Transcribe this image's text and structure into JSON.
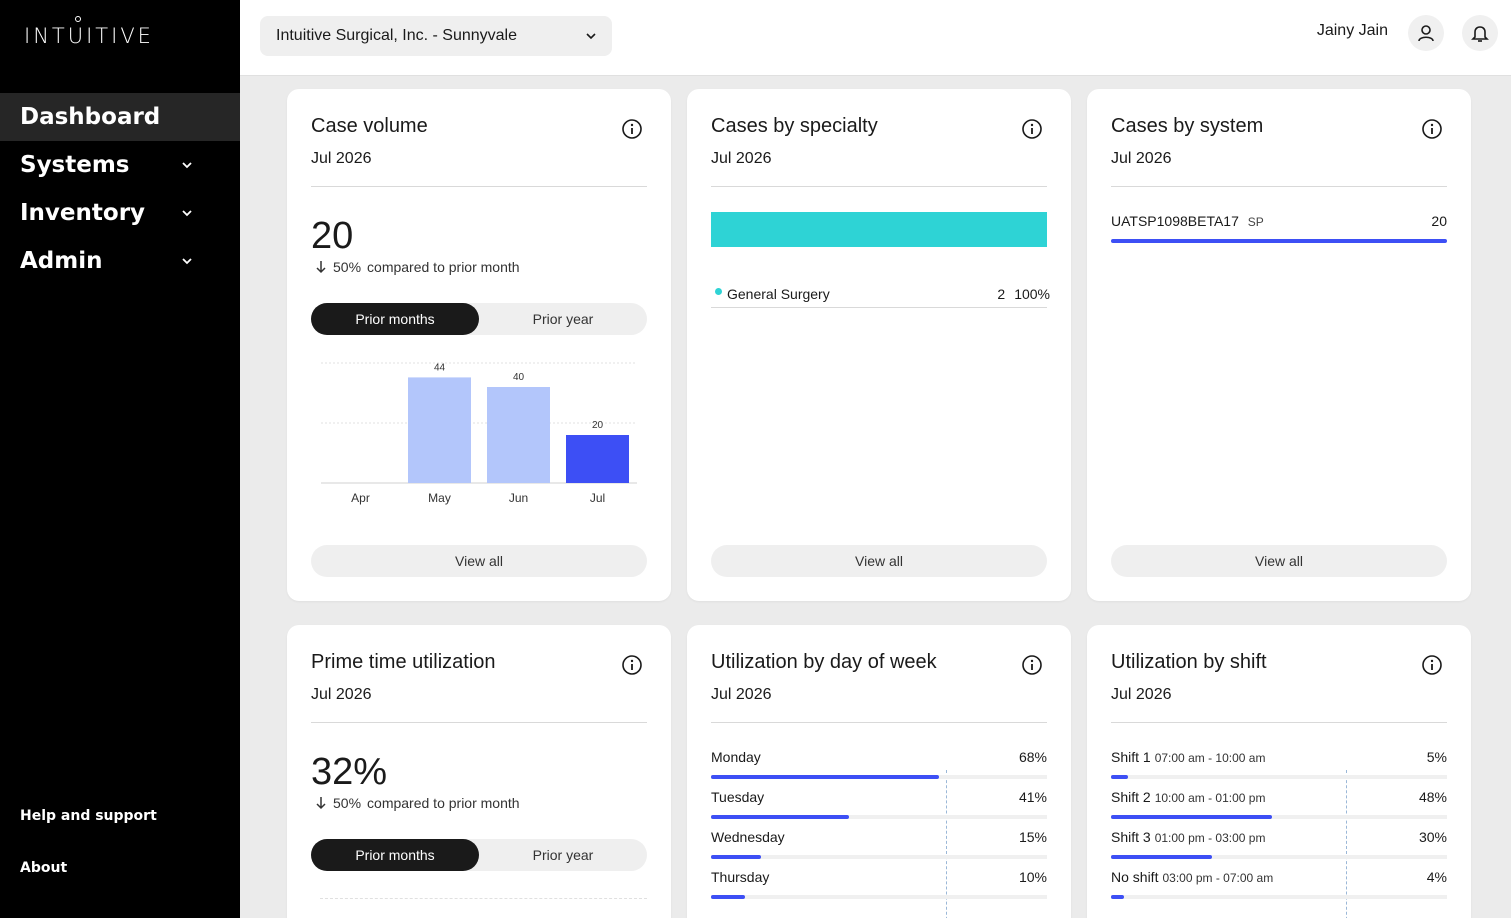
{
  "brand": {
    "logo_text": "INTUITIVE"
  },
  "sidebar": {
    "items": [
      {
        "label": "Dashboard",
        "active": true
      },
      {
        "label": "Systems"
      },
      {
        "label": "Inventory"
      },
      {
        "label": "Admin"
      }
    ],
    "help": "Help and support",
    "about": "About"
  },
  "header": {
    "org": "Intuitive Surgical, Inc. - Sunnyvale",
    "user": "Jainy Jain"
  },
  "case_volume": {
    "title": "Case volume",
    "date": "Jul 2026",
    "value": "20",
    "delta_pct": "50%",
    "delta_text": "compared to prior month",
    "toggle": [
      "Prior months",
      "Prior year"
    ],
    "view_all": "View all",
    "chart_data": {
      "type": "bar",
      "categories": [
        "Apr",
        "May",
        "Jun",
        "Jul"
      ],
      "values": [
        null,
        44,
        40,
        20
      ],
      "ylim": [
        0,
        50
      ],
      "colors": [
        "#b3c6fb",
        "#b3c6fb",
        "#b3c6fb",
        "#3d4ff5"
      ]
    }
  },
  "cases_by_specialty": {
    "title": "Cases by specialty",
    "date": "Jul 2026",
    "bar_color": "#2ed3d5",
    "items": [
      {
        "name": "General Surgery",
        "count": "2",
        "pct": "100%"
      }
    ],
    "view_all": "View all"
  },
  "cases_by_system": {
    "title": "Cases by system",
    "date": "Jul 2026",
    "items": [
      {
        "name": "UATSP1098BETA17",
        "tag": "SP",
        "count": "20"
      }
    ],
    "view_all": "View all"
  },
  "prime_time": {
    "title": "Prime time utilization",
    "date": "Jul 2026",
    "value": "32%",
    "delta_pct": "50%",
    "delta_text": "compared to prior month",
    "toggle": [
      "Prior months",
      "Prior year"
    ]
  },
  "util_by_day": {
    "title": "Utilization by day of week",
    "date": "Jul 2026",
    "rows": [
      {
        "label": "Monday",
        "pct": "68%",
        "value": 68
      },
      {
        "label": "Tuesday",
        "pct": "41%",
        "value": 41
      },
      {
        "label": "Wednesday",
        "pct": "15%",
        "value": 15
      },
      {
        "label": "Thursday",
        "pct": "10%",
        "value": 10
      }
    ]
  },
  "util_by_shift": {
    "title": "Utilization by shift",
    "date": "Jul 2026",
    "rows": [
      {
        "label": "Shift 1",
        "time": "07:00 am - 10:00 am",
        "pct": "5%",
        "value": 5
      },
      {
        "label": "Shift 2",
        "time": "10:00 am - 01:00 pm",
        "pct": "48%",
        "value": 48
      },
      {
        "label": "Shift 3",
        "time": "01:00 pm - 03:00 pm",
        "pct": "30%",
        "value": 30
      },
      {
        "label": "No shift",
        "time": "03:00 pm - 07:00 am",
        "pct": "4%",
        "value": 4
      }
    ]
  }
}
